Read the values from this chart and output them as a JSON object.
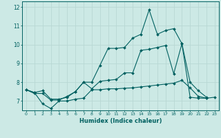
{
  "xlabel": "Humidex (Indice chaleur)",
  "background_color": "#cce9e5",
  "grid_color": "#b8d8d4",
  "line_color": "#006060",
  "xlim": [
    -0.5,
    23.5
  ],
  "ylim": [
    6.5,
    12.3
  ],
  "xticks": [
    0,
    1,
    2,
    3,
    4,
    5,
    6,
    7,
    8,
    9,
    10,
    11,
    12,
    13,
    14,
    15,
    16,
    17,
    18,
    19,
    20,
    21,
    22,
    23
  ],
  "yticks": [
    7,
    8,
    9,
    10,
    11,
    12
  ],
  "s1_x": [
    0,
    1,
    2,
    3,
    4,
    5,
    6,
    7,
    8,
    9,
    10,
    11,
    12,
    13,
    14,
    15,
    16,
    17,
    18,
    19,
    20,
    21,
    22,
    23
  ],
  "s1_y": [
    7.6,
    7.45,
    6.85,
    6.6,
    7.0,
    7.0,
    7.1,
    7.15,
    7.6,
    7.6,
    7.65,
    7.65,
    7.68,
    7.7,
    7.75,
    7.8,
    7.85,
    7.9,
    7.95,
    8.1,
    7.7,
    7.25,
    7.15,
    7.2
  ],
  "s2_x": [
    0,
    1,
    2,
    3,
    4,
    5,
    6,
    7,
    8,
    9,
    10,
    11,
    12,
    13,
    14,
    15,
    16,
    17,
    18,
    19,
    20,
    21,
    22,
    23
  ],
  "s2_y": [
    7.6,
    7.45,
    7.55,
    7.1,
    7.1,
    7.2,
    7.5,
    8.0,
    7.65,
    8.05,
    8.1,
    8.15,
    8.5,
    8.5,
    9.7,
    9.75,
    9.85,
    9.95,
    8.45,
    10.05,
    7.2,
    7.15,
    7.15,
    null
  ],
  "s3_x": [
    0,
    1,
    2,
    3,
    4,
    5,
    6,
    7,
    8,
    9,
    10,
    11,
    12,
    13,
    14,
    15,
    16,
    17,
    18,
    19,
    20,
    21,
    22,
    23
  ],
  "s3_y": [
    7.6,
    7.4,
    7.4,
    7.05,
    7.05,
    7.25,
    7.5,
    8.0,
    8.0,
    8.9,
    9.8,
    9.8,
    9.85,
    10.35,
    10.55,
    11.85,
    10.55,
    10.75,
    10.85,
    10.05,
    8.0,
    7.55,
    7.2,
    null
  ]
}
